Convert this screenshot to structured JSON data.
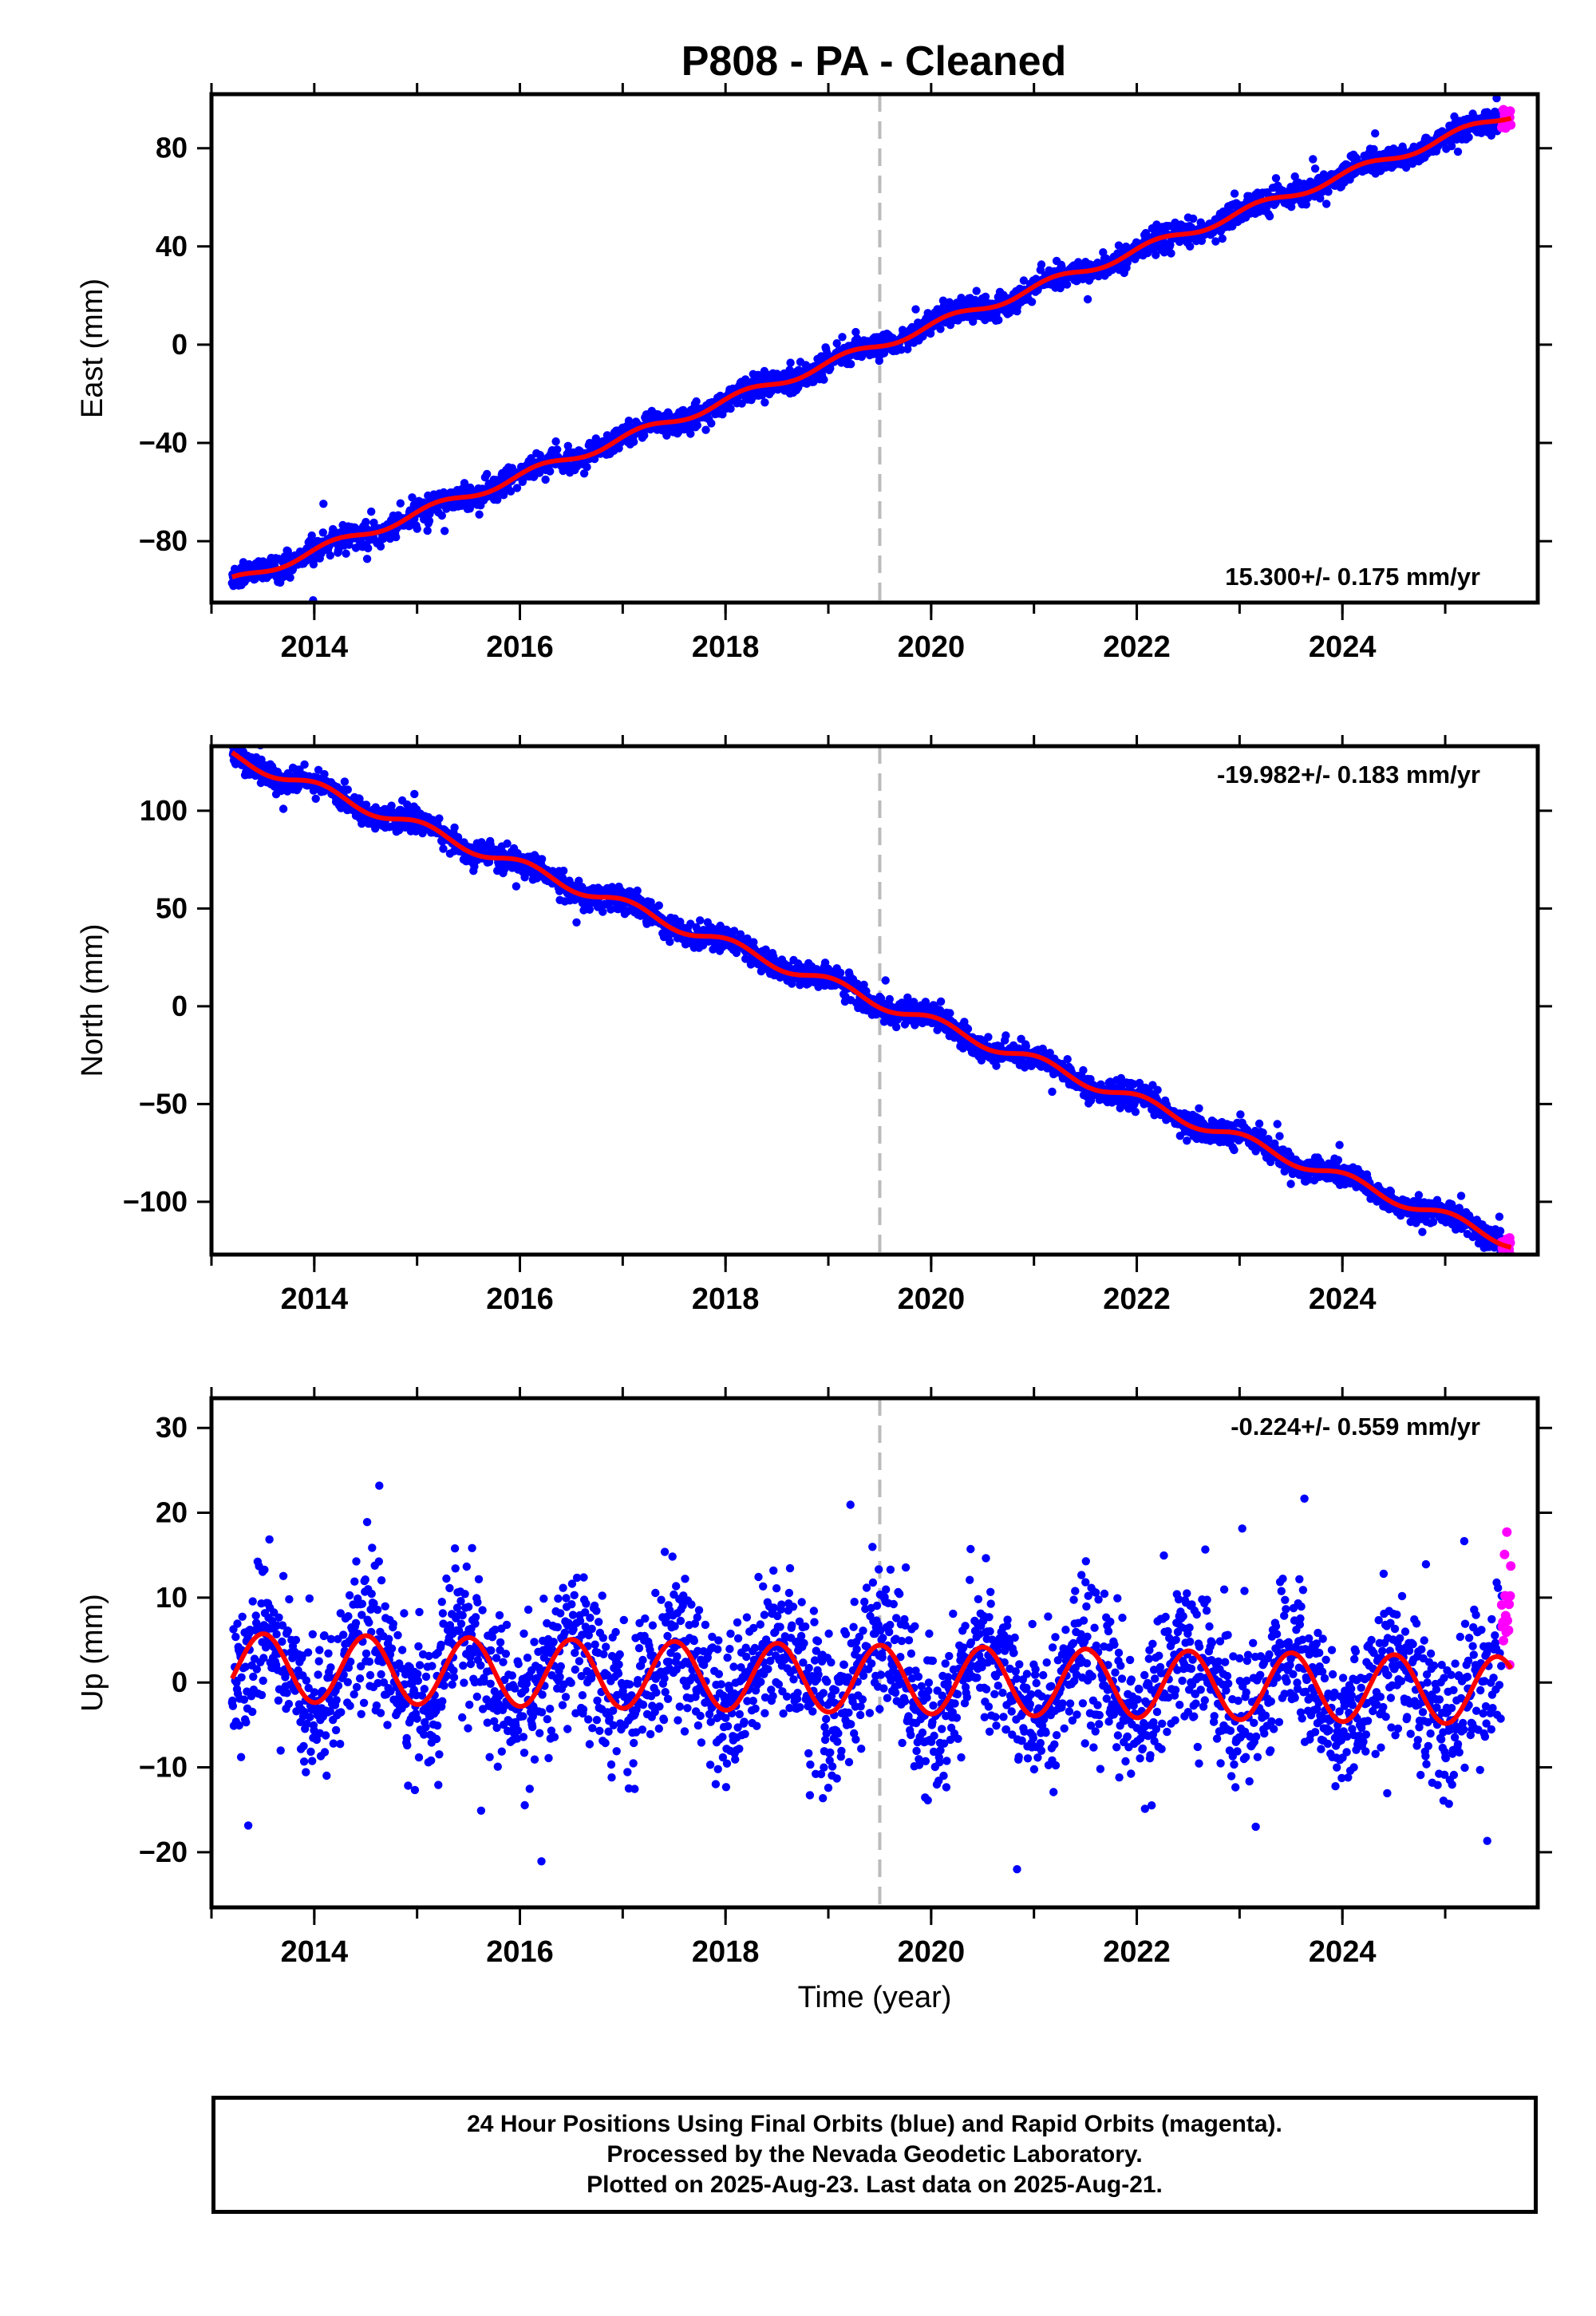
{
  "title": "P808  - PA - Cleaned",
  "footer": {
    "line1": "24 Hour Positions Using Final Orbits (blue) and Rapid Orbits (magenta).",
    "line2": "Processed by the Nevada Geodetic Laboratory.",
    "line3": "Plotted on 2025-Aug-23. Last data on 2025-Aug-21."
  },
  "colors": {
    "final_orbits": "#0000ff",
    "rapid_orbits": "#ff00ff",
    "model_fit": "#ff0000",
    "reference_line": "#bbbbbb",
    "axes": "#000000"
  },
  "chart_data": [
    {
      "type": "scatter",
      "component": "east",
      "ylabel": "East (mm)",
      "xlabel": "",
      "xlim": [
        2013.0,
        2025.9
      ],
      "ylim": [
        -105,
        102
      ],
      "x_ticks": [
        2014,
        2016,
        2018,
        2020,
        2022,
        2024
      ],
      "x_tick_labels": [
        "2014",
        "2016",
        "2018",
        "2020",
        "2022",
        "2024"
      ],
      "y_ticks": [
        -80,
        -40,
        0,
        40,
        80
      ],
      "y_tick_labels": [
        "−80",
        "−40",
        "0",
        "40",
        "80"
      ],
      "rate_label": "15.300+/- 0.175 mm/yr",
      "rate_label_position": "bottom-right",
      "reference_epoch": 2019.5,
      "model": {
        "rate": 15.3,
        "intercept_at_2019_5": 0.0,
        "annual_amplitude": 1.8,
        "annual_phase": 0.4,
        "noise_std": 2.4
      },
      "data_start": 2013.2,
      "final_orbits_end": 2025.55,
      "rapid_orbits_end": 2025.64,
      "series": [
        {
          "role": "final",
          "color": "#0000ff"
        },
        {
          "role": "rapid",
          "color": "#ff00ff"
        },
        {
          "role": "fit",
          "color": "#ff0000"
        }
      ]
    },
    {
      "type": "scatter",
      "component": "north",
      "ylabel": "North (mm)",
      "xlabel": "",
      "xlim": [
        2013.0,
        2025.9
      ],
      "ylim": [
        -127,
        133
      ],
      "x_ticks": [
        2014,
        2016,
        2018,
        2020,
        2022,
        2024
      ],
      "x_tick_labels": [
        "2014",
        "2016",
        "2018",
        "2020",
        "2022",
        "2024"
      ],
      "y_ticks": [
        -100,
        -50,
        0,
        50,
        100
      ],
      "y_tick_labels": [
        "−100",
        "−50",
        "0",
        "50",
        "100"
      ],
      "rate_label": "-19.982+/- 0.183 mm/yr",
      "rate_label_position": "top-right",
      "reference_epoch": 2019.5,
      "model": {
        "rate": -19.982,
        "intercept_at_2019_5": 2.0,
        "annual_amplitude": 3.0,
        "annual_phase": 1.2,
        "noise_std": 3.0
      },
      "data_start": 2013.2,
      "final_orbits_end": 2025.55,
      "rapid_orbits_end": 2025.64,
      "series": [
        {
          "role": "final",
          "color": "#0000ff"
        },
        {
          "role": "rapid",
          "color": "#ff00ff"
        },
        {
          "role": "fit",
          "color": "#ff0000"
        }
      ]
    },
    {
      "type": "scatter",
      "component": "up",
      "ylabel": "Up (mm)",
      "xlabel": "Time (year)",
      "xlim": [
        2013.0,
        2025.9
      ],
      "ylim": [
        -26.5,
        33.5
      ],
      "x_ticks": [
        2014,
        2016,
        2018,
        2020,
        2022,
        2024
      ],
      "x_tick_labels": [
        "2014",
        "2016",
        "2018",
        "2020",
        "2022",
        "2024"
      ],
      "y_ticks": [
        -20,
        -10,
        0,
        10,
        20,
        30
      ],
      "y_tick_labels": [
        "−20",
        "−10",
        "0",
        "10",
        "20",
        "30"
      ],
      "rate_label": "-0.224+/- 0.559 mm/yr",
      "rate_label_position": "top-right",
      "reference_epoch": 2019.5,
      "model": {
        "rate": -0.224,
        "intercept_at_2019_5": 0.4,
        "annual_amplitude": 4.0,
        "annual_phase": -1.6,
        "noise_std": 4.2
      },
      "data_start": 2013.2,
      "final_orbits_end": 2025.55,
      "rapid_orbits_end": 2025.64,
      "series": [
        {
          "role": "final",
          "color": "#0000ff"
        },
        {
          "role": "rapid",
          "color": "#ff00ff"
        },
        {
          "role": "fit",
          "color": "#ff0000"
        }
      ]
    }
  ]
}
